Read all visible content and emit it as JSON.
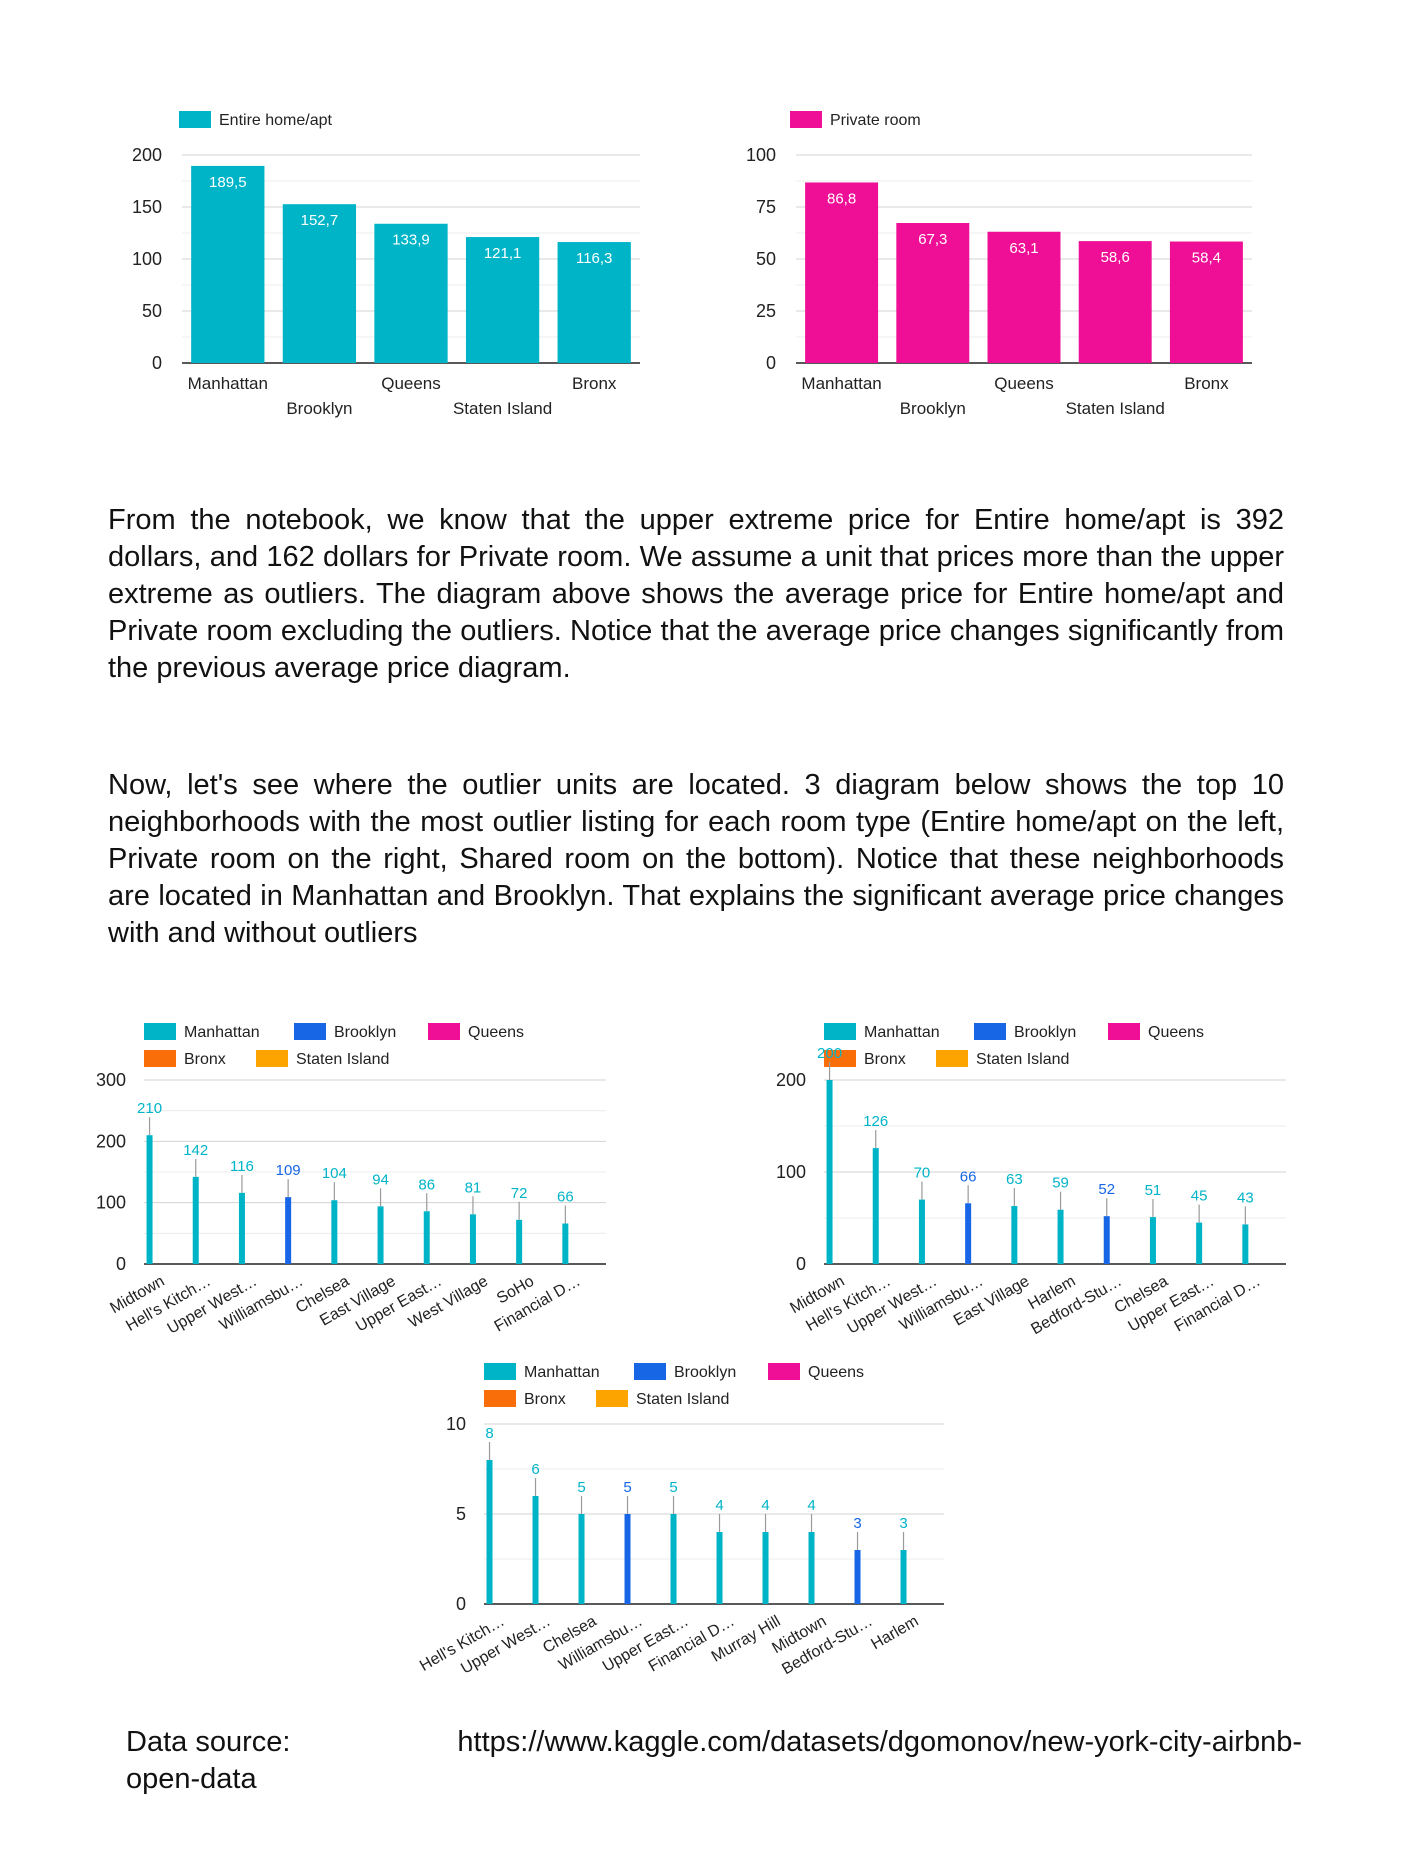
{
  "colors": {
    "entire": "#00b4c8",
    "private": "#ee0f96",
    "manhattan": "#00b4c8",
    "brooklyn": "#1666e6",
    "queens": "#ee0f96",
    "bronx": "#fa6e0a",
    "staten": "#fea400",
    "grid": "#d6d6d6",
    "axis": "#222222",
    "tick_text": "#222222"
  },
  "chart_data": [
    {
      "id": "entire-avg",
      "type": "bar",
      "title": "",
      "xlabel": "",
      "ylabel": "",
      "legend": [
        {
          "name": "Entire home/apt",
          "color_key": "entire"
        }
      ],
      "categories": [
        "Manhattan",
        "Brooklyn",
        "Queens",
        "Staten Island",
        "Bronx"
      ],
      "series": [
        {
          "name": "Entire home/apt",
          "values": [
            189.5,
            152.7,
            133.9,
            121.1,
            116.3
          ]
        }
      ],
      "value_labels": [
        "189,5",
        "152,7",
        "133,9",
        "121,1",
        "116,3"
      ],
      "ylim": [
        0,
        200
      ],
      "yticks": [
        0,
        50,
        100,
        150,
        200
      ],
      "grid": true,
      "legend_position": "top-left"
    },
    {
      "id": "private-avg",
      "type": "bar",
      "title": "",
      "xlabel": "",
      "ylabel": "",
      "legend": [
        {
          "name": "Private room",
          "color_key": "private"
        }
      ],
      "categories": [
        "Manhattan",
        "Brooklyn",
        "Queens",
        "Staten Island",
        "Bronx"
      ],
      "series": [
        {
          "name": "Private room",
          "values": [
            86.8,
            67.3,
            63.1,
            58.6,
            58.4
          ]
        }
      ],
      "value_labels": [
        "86,8",
        "67,3",
        "63,1",
        "58,6",
        "58,4"
      ],
      "ylim": [
        0,
        100
      ],
      "yticks": [
        0,
        25,
        50,
        75,
        100
      ],
      "grid": true,
      "legend_position": "top-left"
    },
    {
      "id": "entire-outliers",
      "type": "bar",
      "title": "",
      "xlabel": "",
      "ylabel": "",
      "legend": [
        {
          "name": "Manhattan",
          "color_key": "manhattan"
        },
        {
          "name": "Brooklyn",
          "color_key": "brooklyn"
        },
        {
          "name": "Queens",
          "color_key": "queens"
        },
        {
          "name": "Bronx",
          "color_key": "bronx"
        },
        {
          "name": "Staten Island",
          "color_key": "staten"
        }
      ],
      "categories": [
        "Midtown",
        "Hell's Kitch…",
        "Upper West…",
        "Williamsbu…",
        "Chelsea",
        "East Village",
        "Upper East…",
        "West Village",
        "SoHo",
        "Financial D…"
      ],
      "values": [
        210,
        142,
        116,
        109,
        104,
        94,
        86,
        81,
        72,
        66
      ],
      "boroughs": [
        "manhattan",
        "manhattan",
        "manhattan",
        "brooklyn",
        "manhattan",
        "manhattan",
        "manhattan",
        "manhattan",
        "manhattan",
        "manhattan"
      ],
      "ylim": [
        0,
        300
      ],
      "yticks": [
        0,
        100,
        200,
        300
      ],
      "grid": true,
      "legend_position": "top-left"
    },
    {
      "id": "private-outliers",
      "type": "bar",
      "title": "",
      "xlabel": "",
      "ylabel": "",
      "legend": [
        {
          "name": "Manhattan",
          "color_key": "manhattan"
        },
        {
          "name": "Brooklyn",
          "color_key": "brooklyn"
        },
        {
          "name": "Queens",
          "color_key": "queens"
        },
        {
          "name": "Bronx",
          "color_key": "bronx"
        },
        {
          "name": "Staten Island",
          "color_key": "staten"
        }
      ],
      "categories": [
        "Midtown",
        "Hell's Kitch…",
        "Upper West…",
        "Williamsbu…",
        "East Village",
        "Harlem",
        "Bedford-Stu…",
        "Chelsea",
        "Upper East…",
        "Financial D…"
      ],
      "values": [
        200,
        126,
        70,
        66,
        63,
        59,
        52,
        51,
        45,
        43
      ],
      "boroughs": [
        "manhattan",
        "manhattan",
        "manhattan",
        "brooklyn",
        "manhattan",
        "manhattan",
        "brooklyn",
        "manhattan",
        "manhattan",
        "manhattan"
      ],
      "ylim": [
        0,
        200
      ],
      "yticks": [
        0,
        100,
        200
      ],
      "grid": true,
      "legend_position": "top-left"
    },
    {
      "id": "shared-outliers",
      "type": "bar",
      "title": "",
      "xlabel": "",
      "ylabel": "",
      "legend": [
        {
          "name": "Manhattan",
          "color_key": "manhattan"
        },
        {
          "name": "Brooklyn",
          "color_key": "brooklyn"
        },
        {
          "name": "Queens",
          "color_key": "queens"
        },
        {
          "name": "Bronx",
          "color_key": "bronx"
        },
        {
          "name": "Staten Island",
          "color_key": "staten"
        }
      ],
      "categories": [
        "Hell's Kitch…",
        "Upper West…",
        "Chelsea",
        "Williamsbu…",
        "Upper East…",
        "Financial D…",
        "Murray Hill",
        "Midtown",
        "Bedford-Stu…",
        "Harlem"
      ],
      "values": [
        8,
        6,
        5,
        5,
        5,
        4,
        4,
        4,
        3,
        3
      ],
      "boroughs": [
        "manhattan",
        "manhattan",
        "manhattan",
        "brooklyn",
        "manhattan",
        "manhattan",
        "manhattan",
        "manhattan",
        "brooklyn",
        "manhattan"
      ],
      "ylim": [
        0,
        10
      ],
      "yticks": [
        0,
        5,
        10
      ],
      "grid": true,
      "legend_position": "top-left"
    }
  ],
  "text": {
    "paragraph1": "From the notebook, we know that the upper extreme price for Entire home/apt is 392 dollars, and 162 dollars for Private room. We assume a unit that prices more than the upper extreme as outliers. The diagram above shows the average price for Entire home/apt and Private room excluding the outliers. Notice that the average price changes significantly from the previous average price diagram.",
    "paragraph2": "Now, let's see where the outlier units are located. 3 diagram below shows the top 10 neighborhoods with the most outlier listing for each room type (Entire home/apt on the left, Private room on the right, Shared room on the bottom). Notice that these neighborhoods are located in Manhattan and Brooklyn. That explains the significant average price changes with and without outliers",
    "source_label": "Data source:",
    "source_url_part1": "https://www.kaggle.com/datasets/dgomonov/new-york-city-airbnb-",
    "source_url_part2": "open-data"
  }
}
